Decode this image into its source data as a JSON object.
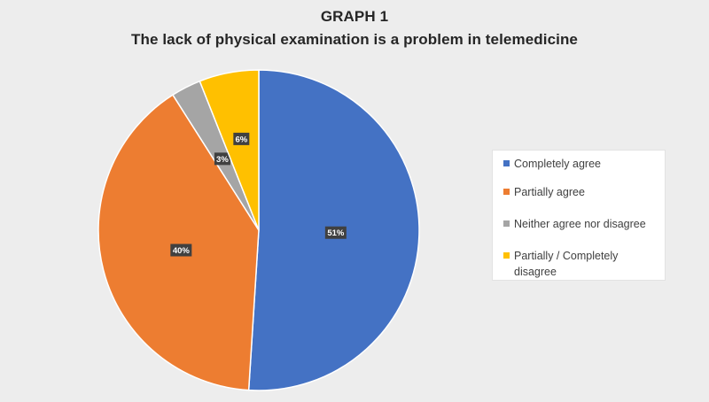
{
  "title": "GRAPH 1",
  "subtitle": "The lack of physical examination is a problem in telemedicine",
  "chart_data": {
    "type": "pie",
    "title": "GRAPH 1",
    "subtitle": "The lack of physical examination is a problem in telemedicine",
    "legend_position": "right",
    "slices": [
      {
        "label": "Completely agree",
        "value": 51,
        "display": "51%",
        "color": "#4472c4"
      },
      {
        "label": "Partially agree",
        "value": 40,
        "display": "40%",
        "color": "#ed7d31"
      },
      {
        "label": "Neither agree nor disagree",
        "value": 3,
        "display": "3%",
        "color": "#a5a5a5"
      },
      {
        "label": "Partially / Completely disagree",
        "value": 6,
        "display": "6%",
        "color": "#ffc000"
      }
    ]
  }
}
